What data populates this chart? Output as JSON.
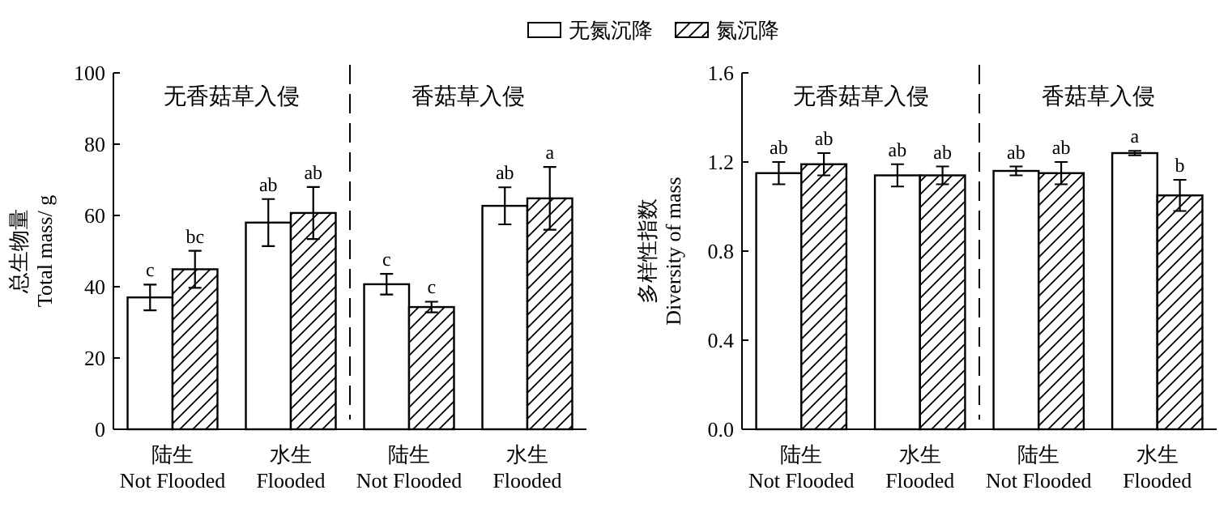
{
  "chart_data": [
    {
      "type": "bar",
      "categories": [
        "陆生\nNot Flooded",
        "水生\nFlooded",
        "陆生\nNot Flooded",
        "水生\nFlooded"
      ],
      "ylabel": "总生物量\nTotal mass/ g",
      "ylim": [
        0,
        100
      ],
      "yticks": [
        0,
        20,
        40,
        60,
        80,
        100
      ],
      "legend": "top",
      "annotations": [
        "无香菇草入侵",
        "香菇草入侵"
      ],
      "series": [
        {
          "name": "无氮沉降",
          "color": "#ffffff",
          "values": [
            37.0,
            58.0,
            40.7,
            62.7
          ],
          "errors": [
            3.6,
            6.6,
            2.9,
            5.2
          ],
          "value_labels": [
            "c",
            "ab",
            "c",
            "ab"
          ]
        },
        {
          "name": "氮沉降",
          "color": "#000000",
          "values": [
            44.9,
            60.7,
            34.3,
            64.8
          ],
          "errors": [
            5.2,
            7.3,
            1.5,
            8.8
          ],
          "value_labels": [
            "bc",
            "ab",
            "c",
            "a"
          ]
        }
      ]
    },
    {
      "type": "bar",
      "categories": [
        "陆生\nNot Flooded",
        "水生\nFlooded",
        "陆生\nNot Flooded",
        "水生\nFlooded"
      ],
      "ylabel": "多样性指数\nDiversity of mass",
      "ylim": [
        0,
        1.6
      ],
      "yticks": [
        {
          "value": 0,
          "label": "0.0"
        },
        0.4,
        0.8,
        1.2,
        1.6
      ],
      "annotations": [
        "无香菇草入侵",
        "香菇草入侵"
      ],
      "series": [
        {
          "color": "#ffffff",
          "values": [
            1.15,
            1.14,
            1.16,
            1.24
          ],
          "errors": [
            0.05,
            0.05,
            0.02,
            0.01
          ],
          "value_labels": [
            "ab",
            "ab",
            "ab",
            "a"
          ]
        },
        {
          "color": "#000000",
          "values": [
            1.19,
            1.14,
            1.15,
            1.05
          ],
          "errors": [
            0.05,
            0.04,
            0.05,
            0.07
          ],
          "value_labels": [
            "ab",
            "ab",
            "ab",
            "b"
          ]
        }
      ]
    }
  ]
}
